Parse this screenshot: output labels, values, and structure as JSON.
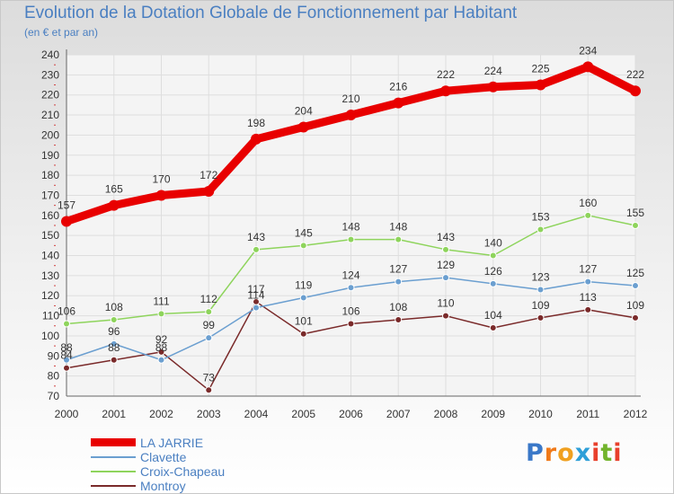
{
  "title": "Evolution de la Dotation Globale de Fonctionnement par Habitant",
  "subtitle": "(en € et par an)",
  "logo": {
    "text": "Proxiti",
    "letter_colors": [
      "#3a78c8",
      "#f07a1a",
      "#f0a020",
      "#2e9fd8",
      "#e8402c",
      "#72b42c",
      "#e8402c"
    ]
  },
  "chart_data": {
    "type": "line",
    "title": "Evolution de la Dotation Globale de Fonctionnement par Habitant",
    "subtitle": "(en € et par an)",
    "xlabel": "",
    "ylabel": "",
    "x": [
      "2000",
      "2001",
      "2002",
      "2003",
      "2004",
      "2005",
      "2006",
      "2007",
      "2008",
      "2009",
      "2010",
      "2011",
      "2012"
    ],
    "ylim": [
      70,
      240
    ],
    "yticks": [
      70,
      80,
      90,
      100,
      110,
      120,
      130,
      140,
      150,
      160,
      170,
      180,
      190,
      200,
      210,
      220,
      230,
      240
    ],
    "grid": true,
    "legend_position": "bottom-left",
    "series": [
      {
        "name": "LA JARRIE",
        "color": "#e80000",
        "values": [
          157,
          165,
          170,
          172,
          198,
          204,
          210,
          216,
          222,
          224,
          225,
          234,
          222
        ],
        "labels": [
          "157",
          "165",
          "170",
          "172",
          "198",
          "204",
          "210",
          "216",
          "222",
          "224",
          "225",
          "234",
          "222"
        ]
      },
      {
        "name": "Clavette",
        "color": "#6b9fd0",
        "values": [
          88,
          96,
          88,
          99,
          114,
          119,
          124,
          127,
          129,
          126,
          123,
          127,
          125
        ],
        "labels": [
          "88",
          "96",
          "88",
          "99",
          "114",
          "119",
          "124",
          "127",
          "129",
          "126",
          "123",
          "127",
          "125"
        ]
      },
      {
        "name": "Croix-Chapeau",
        "color": "#8ed45c",
        "values": [
          106,
          108,
          111,
          112,
          143,
          145,
          148,
          148,
          143,
          140,
          153,
          160,
          155
        ],
        "labels": [
          "106",
          "108",
          "111",
          "112",
          "143",
          "145",
          "148",
          "148",
          "143",
          "140",
          "153",
          "160",
          "155"
        ]
      },
      {
        "name": "Montroy",
        "color": "#7a2a2a",
        "values": [
          84,
          88,
          92,
          73,
          117,
          101,
          106,
          108,
          110,
          104,
          109,
          113,
          109
        ],
        "labels": [
          "84",
          "88",
          "92",
          "73",
          "117",
          "101",
          "106",
          "108",
          "110",
          "104",
          "109",
          "113",
          "109"
        ]
      }
    ]
  }
}
